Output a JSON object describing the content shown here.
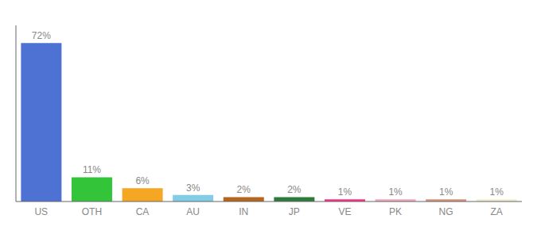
{
  "chart_data": {
    "type": "bar",
    "categories": [
      "US",
      "OTH",
      "CA",
      "AU",
      "IN",
      "JP",
      "VE",
      "PK",
      "NG",
      "ZA"
    ],
    "values": [
      72,
      11,
      6,
      3,
      2,
      2,
      1,
      1,
      1,
      1
    ],
    "value_labels": [
      "72%",
      "11%",
      "6%",
      "3%",
      "2%",
      "2%",
      "1%",
      "1%",
      "1%",
      "1%"
    ],
    "colors": [
      "#4d72d4",
      "#33c43a",
      "#f5a623",
      "#82cce8",
      "#b5651d",
      "#2d7a3a",
      "#ff2d8a",
      "#f4a7b9",
      "#d9907a",
      "#f0eecc"
    ],
    "ylim": [
      0,
      80
    ],
    "grid": false,
    "data_labels": true,
    "tick_labels": "x"
  }
}
